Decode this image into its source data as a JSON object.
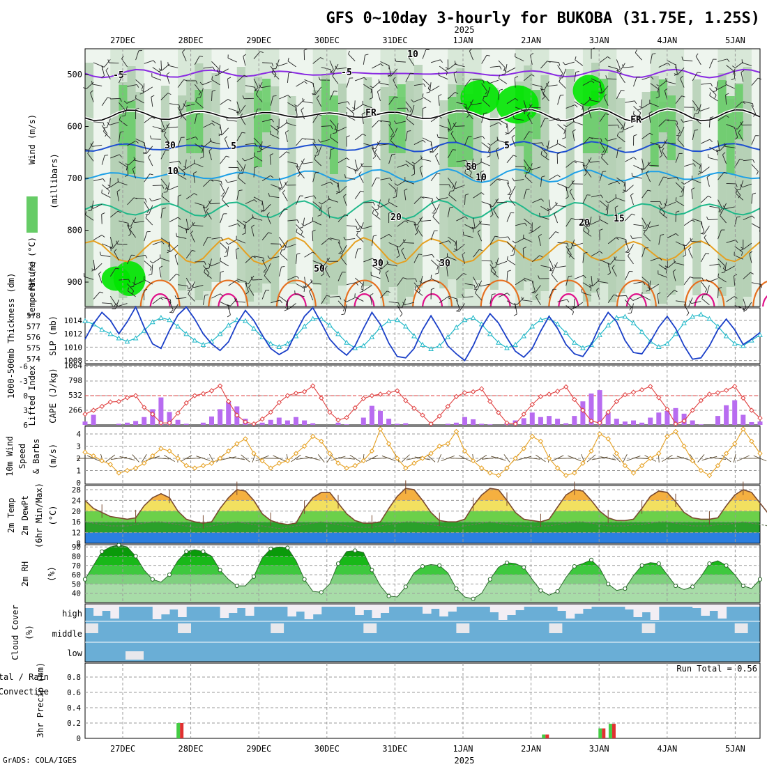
{
  "title": "GFS 0~10day 3-hourly for BUKOBA (31.75E, 1.25S)",
  "year_label": "2025",
  "footer": "GrADS: COLA/IGES",
  "dates": [
    "27DEC",
    "28DEC",
    "29DEC",
    "30DEC",
    "31DEC",
    "1JAN",
    "2JAN",
    "3JAN",
    "4JAN",
    "5JAN"
  ],
  "colors": {
    "rh_light": "#d8e8d8",
    "rh_mid": "#a8c8a8",
    "rh_green": "#66cc66",
    "rh_bright": "#00e600",
    "temp_m5": "#8a2be2",
    "temp_fr": "#000000",
    "temp_5": "#1e4fd0",
    "temp_10": "#1ea0e6",
    "temp_15": "#20b88a",
    "temp_20": "#e6a020",
    "temp_25": "#e67020",
    "temp_30": "#e0108a",
    "slp": "#1a3fc8",
    "thickness": "#20b8c8",
    "lifted": "#e04040",
    "cape": "#b86cf0",
    "wind10": "#e6a020",
    "cloud": "#6aaed6",
    "precip_total": "#44cc44",
    "precip_conv": "#e03030"
  },
  "panels": {
    "upper": {
      "ylabel_wind": "Wind (m/s)",
      "ylabel_temp": "Temperature (°C)",
      "ylabel_rh": "RH (%)",
      "ylabel_pressure": "(millibars)",
      "yticks": [
        "500",
        "600",
        "700",
        "800",
        "900"
      ],
      "contour_labels": [
        "-5",
        "-5",
        "FR",
        "FR",
        "5",
        "5",
        "10",
        "10",
        "15",
        "20",
        "20",
        "10",
        "30",
        "30",
        "50",
        "50",
        "30"
      ]
    },
    "slp": {
      "ylabel_left": "1000-500mb Thickness (dm)",
      "ylabel_right": "SLP (mb)",
      "left_ticks": [
        "578",
        "577",
        "576",
        "575",
        "574"
      ],
      "right_ticks": [
        "1014",
        "1012",
        "1010",
        "1008"
      ]
    },
    "cape": {
      "ylabel_left": "Lifted Index",
      "ylabel_right": "CAPE (J/kg)",
      "left_ticks": [
        "-6",
        "-3",
        "0",
        "3",
        "6"
      ],
      "right_ticks": [
        "1064",
        "798",
        "532",
        "266"
      ]
    },
    "wind": {
      "ylabel_a": "10m Wind",
      "ylabel_b": "Speed",
      "ylabel_c": "& Barbs",
      "ylabel_d": "(m/s)",
      "yticks": [
        "4",
        "3",
        "2",
        "1",
        "0"
      ]
    },
    "temp": {
      "ylabel_a": "2m Temp",
      "ylabel_b": "2m DewPt",
      "ylabel_c": "(6hr Min/Max)",
      "ylabel_d": "(°C)",
      "yticks": [
        "28",
        "24",
        "20",
        "16",
        "12",
        "8"
      ]
    },
    "rh": {
      "ylabel_a": "2m RH",
      "ylabel_b": "(%)",
      "yticks": [
        "90",
        "80",
        "70",
        "60",
        "50",
        "40"
      ]
    },
    "cloud": {
      "ylabel_a": "Cloud Cover",
      "ylabel_b": "(%)",
      "rows": [
        "high",
        "middle",
        "low"
      ]
    },
    "precip": {
      "ylabel_a": "3hr Precip (mm)",
      "ylabel_b": "Total / Rain",
      "ylabel_c": "Convective",
      "yticks": [
        "0.8",
        "0.6",
        "0.4",
        "0.2",
        "0"
      ],
      "run_total": "Run Total = 0.56"
    }
  },
  "chart_data": [
    {
      "type": "line",
      "panel": "SLP and 1000-500mb thickness",
      "xlim": [
        0,
        80
      ],
      "series": [
        {
          "name": "SLP (mb)",
          "values": [
            1011.2,
            1013.5,
            1015.2,
            1014.0,
            1012.0,
            1013.8,
            1016.0,
            1013.0,
            1010.5,
            1009.8,
            1012.5,
            1014.8,
            1016.0,
            1014.2,
            1012.0,
            1010.5,
            1009.5,
            1010.8,
            1013.5,
            1015.5,
            1014.0,
            1011.8,
            1009.8,
            1008.9,
            1009.6,
            1012.2,
            1014.6,
            1015.9,
            1013.6,
            1011.2,
            1009.8,
            1008.8,
            1010.2,
            1012.8,
            1015.2,
            1013.4,
            1010.6,
            1008.6,
            1008.4,
            1009.8,
            1012.6,
            1014.7,
            1012.6,
            1010.2,
            1009.0,
            1008.0,
            1010.2,
            1013.0,
            1015.0,
            1013.6,
            1011.4,
            1009.4,
            1008.5,
            1009.8,
            1012.4,
            1014.6,
            1012.8,
            1010.4,
            1009.0,
            1008.6,
            1010.4,
            1013.2,
            1015.2,
            1013.8,
            1011.0,
            1009.2,
            1009.0,
            1010.8,
            1013.0,
            1014.6,
            1012.8,
            1010.2,
            1008.2,
            1008.4,
            1010.2,
            1012.6,
            1014.2,
            1012.6,
            1010.4,
            1011.2,
            1012.2
          ]
        },
        {
          "name": "1000-500mb Thickness (dm)",
          "values": [
            577.5,
            577.2,
            576.7,
            576.3,
            575.9,
            575.6,
            575.9,
            576.6,
            577.4,
            577.8,
            577.6,
            577.0,
            576.3,
            575.7,
            575.3,
            575.6,
            576.3,
            577.1,
            577.6,
            577.5,
            576.8,
            576.0,
            575.4,
            575.1,
            575.4,
            576.1,
            577.0,
            577.7,
            577.7,
            577.1,
            576.3,
            575.5,
            575.0,
            575.2,
            576.0,
            576.9,
            577.5,
            577.6,
            577.0,
            576.1,
            575.3,
            574.9,
            575.2,
            576.0,
            576.9,
            577.6,
            577.8,
            577.2,
            576.3,
            575.5,
            575.0,
            575.3,
            576.1,
            577.0,
            577.6,
            577.8,
            577.2,
            576.4,
            575.5,
            575.0,
            575.3,
            576.2,
            577.1,
            577.8,
            577.9,
            577.3,
            576.5,
            575.6,
            575.1,
            575.4,
            576.3,
            577.3,
            577.9,
            578.1,
            577.7,
            577.0,
            576.1,
            575.4,
            575.2,
            575.7,
            576.2
          ]
        }
      ]
    },
    {
      "type": "line",
      "panel": "Lifted Index and CAPE",
      "series": [
        {
          "name": "Lifted Index",
          "values": [
            3.8,
            3.0,
            2.2,
            1.3,
            1.2,
            0.4,
            0.0,
            2.4,
            3.8,
            5.6,
            5.6,
            3.6,
            1.5,
            0.0,
            -0.4,
            -1.0,
            -2.0,
            1.2,
            4.0,
            5.4,
            5.8,
            4.8,
            3.4,
            1.4,
            0.0,
            -0.5,
            -0.8,
            -2.0,
            0.5,
            3.4,
            5.0,
            4.5,
            2.5,
            0.6,
            0.0,
            -0.3,
            -0.6,
            -1.0,
            1.0,
            2.6,
            4.0,
            5.8,
            4.2,
            2.2,
            0.2,
            -0.6,
            -0.8,
            -1.4,
            1.2,
            3.5,
            5.6,
            5.8,
            3.8,
            1.8,
            0.2,
            -0.3,
            -0.9,
            -1.8,
            0.8,
            3.0,
            5.2,
            5.6,
            3.4,
            1.2,
            -0.2,
            -0.7,
            -1.2,
            -1.9,
            0.4,
            2.8,
            5.8,
            5.2,
            3.0,
            1.0,
            -0.3,
            -0.6,
            -1.1,
            -1.9,
            0.5,
            3.0,
            4.6
          ]
        },
        {
          "name": "CAPE (J/kg)",
          "values": [
            60,
            180,
            0,
            0,
            20,
            40,
            70,
            140,
            280,
            490,
            230,
            90,
            20,
            0,
            40,
            150,
            280,
            420,
            330,
            110,
            20,
            40,
            90,
            130,
            80,
            140,
            80,
            30,
            0,
            0,
            40,
            10,
            0,
            130,
            340,
            250,
            110,
            20,
            30,
            0,
            0,
            0,
            0,
            20,
            40,
            140,
            100,
            20,
            10,
            0,
            40,
            80,
            120,
            220,
            140,
            160,
            110,
            30,
            160,
            420,
            560,
            620,
            220,
            110,
            60,
            80,
            40,
            130,
            220,
            250,
            300,
            200,
            80,
            10,
            0,
            160,
            350,
            440,
            180,
            50,
            60
          ]
        }
      ]
    },
    {
      "type": "line",
      "panel": "10m Wind Speed",
      "series": [
        {
          "name": "10m Wind Speed (m/s)",
          "values": [
            2.5,
            2.2,
            1.8,
            1.5,
            0.8,
            1.0,
            1.2,
            1.6,
            2.2,
            2.8,
            2.6,
            2.0,
            1.4,
            1.2,
            1.4,
            1.6,
            2.0,
            2.6,
            3.2,
            3.6,
            2.4,
            1.8,
            1.2,
            1.6,
            1.8,
            2.4,
            3.0,
            3.8,
            3.4,
            2.4,
            1.6,
            1.2,
            1.4,
            1.8,
            2.6,
            4.4,
            3.2,
            2.0,
            1.2,
            1.6,
            2.0,
            2.4,
            3.0,
            3.2,
            4.2,
            2.6,
            1.8,
            1.2,
            0.8,
            0.6,
            1.2,
            2.0,
            2.8,
            3.8,
            3.4,
            2.0,
            1.2,
            0.6,
            0.8,
            1.6,
            2.6,
            4.0,
            3.6,
            2.4,
            1.4,
            0.8,
            1.4,
            2.0,
            2.4,
            3.8,
            4.2,
            3.0,
            1.8,
            1.0,
            0.6,
            1.4,
            2.4,
            3.2,
            4.4,
            3.4,
            2.4
          ]
        }
      ]
    },
    {
      "type": "area",
      "panel": "2m Temperature and Dew Point",
      "series": [
        {
          "name": "2m Temp (°C)",
          "values": [
            24,
            21,
            19.5,
            18,
            17.5,
            17,
            17.5,
            22,
            25,
            26.5,
            25,
            20,
            17,
            16,
            15.5,
            16,
            21,
            25,
            28,
            27.5,
            24,
            19,
            16.5,
            15.5,
            15,
            15.5,
            21,
            25,
            27,
            27,
            23,
            19,
            16.5,
            15.5,
            15.5,
            16,
            21,
            25.5,
            28.5,
            28,
            24,
            19.5,
            16.5,
            16,
            16,
            17,
            22,
            26,
            28.5,
            28,
            24,
            19.5,
            17,
            16.5,
            16,
            17,
            21.5,
            26,
            28,
            27.5,
            24,
            20,
            17.5,
            16.5,
            16.5,
            17,
            21,
            25.5,
            27.5,
            27,
            23.5,
            19.5,
            17.5,
            17,
            17,
            17.5,
            22,
            26,
            28,
            27,
            23,
            19,
            17.5,
            17,
            16.5,
            17,
            22.5
          ]
        },
        {
          "name": "2m DewPt (°C)",
          "values": [
            16,
            15.5,
            15,
            14.5,
            14.5,
            14.5,
            15,
            15.5,
            16,
            16,
            15.5,
            15,
            14.5,
            14,
            14,
            14.5,
            15,
            15.5,
            16,
            15.5,
            15,
            14.5,
            14,
            13.5,
            14,
            14.5,
            15,
            15.5,
            16,
            15.5,
            15,
            14.5,
            14,
            14,
            14,
            14.5,
            15,
            15.5,
            16,
            16,
            15.5,
            15,
            14.5,
            14,
            14,
            14.5,
            15,
            15.5,
            16,
            15.5,
            15,
            14.5,
            14.5,
            14,
            14.5,
            14.5,
            15,
            15.5,
            16,
            16,
            15.5,
            15,
            14.5,
            14.5,
            14.5,
            15,
            15,
            15.5,
            16,
            16,
            15.5,
            15,
            14.5,
            14.5,
            14.5,
            15,
            15,
            15.5,
            16,
            15.5,
            15,
            14.5,
            14.5,
            14.5,
            14.5
          ]
        }
      ]
    },
    {
      "type": "area",
      "panel": "2m RH",
      "series": [
        {
          "name": "2m RH (%)",
          "values": [
            55,
            70,
            85,
            90,
            92,
            90,
            80,
            65,
            55,
            52,
            60,
            75,
            85,
            87,
            85,
            80,
            65,
            55,
            48,
            48,
            58,
            78,
            88,
            90,
            89,
            75,
            55,
            42,
            41,
            50,
            72,
            85,
            86,
            84,
            65,
            48,
            37,
            36,
            47,
            62,
            69,
            71,
            70,
            62,
            45,
            36,
            34,
            40,
            55,
            68,
            73,
            72,
            68,
            55,
            43,
            38,
            42,
            57,
            69,
            72,
            76,
            67,
            50,
            43,
            45,
            59,
            70,
            73,
            72,
            60,
            48,
            44,
            47,
            58,
            72,
            75,
            70,
            60,
            48,
            45,
            55
          ]
        }
      ]
    },
    {
      "type": "bar",
      "panel": "3hr Precip",
      "series": [
        {
          "name": "Total / Rain",
          "values": [
            0,
            0,
            0,
            0,
            0,
            0,
            0,
            0,
            0,
            0,
            0,
            0,
            0,
            0,
            0,
            0,
            0,
            0,
            0,
            0,
            0,
            0,
            0,
            0,
            0,
            0,
            0,
            0,
            0,
            0,
            0,
            0,
            0,
            0,
            0,
            0,
            0,
            0,
            0,
            0,
            0,
            0,
            0,
            0,
            0,
            0,
            0,
            0,
            0,
            0,
            0,
            0,
            0,
            0,
            0,
            0,
            0,
            0,
            0,
            0,
            0,
            0,
            0,
            0,
            0,
            0,
            0,
            0,
            0,
            0,
            0,
            0,
            0,
            0,
            0,
            0,
            0,
            0,
            0,
            0,
            0
          ]
        },
        {
          "name": "Convective",
          "values": [
            0,
            0,
            0,
            0,
            0,
            0,
            0,
            0,
            0,
            0,
            0,
            0,
            0,
            0,
            0,
            0,
            0,
            0,
            0,
            0,
            0,
            0,
            0,
            0,
            0,
            0,
            0,
            0,
            0,
            0,
            0,
            0,
            0,
            0,
            0,
            0,
            0,
            0,
            0,
            0,
            0,
            0,
            0,
            0,
            0,
            0,
            0,
            0,
            0,
            0,
            0,
            0,
            0,
            0,
            0,
            0,
            0,
            0,
            0,
            0,
            0,
            0,
            0,
            0,
            0,
            0,
            0,
            0,
            0,
            0,
            0,
            0,
            0,
            0,
            0,
            0,
            0,
            0,
            0,
            0,
            0
          ]
        }
      ],
      "events": [
        {
          "date_index": 0.85,
          "total": 0.2,
          "convective": 0.2
        },
        {
          "date_index": 6.22,
          "total": 0.05,
          "convective": 0.05
        },
        {
          "date_index": 7.05,
          "total": 0.13,
          "convective": 0.13
        },
        {
          "date_index": 7.2,
          "total": 0.19,
          "convective": 0.19
        }
      ]
    }
  ]
}
